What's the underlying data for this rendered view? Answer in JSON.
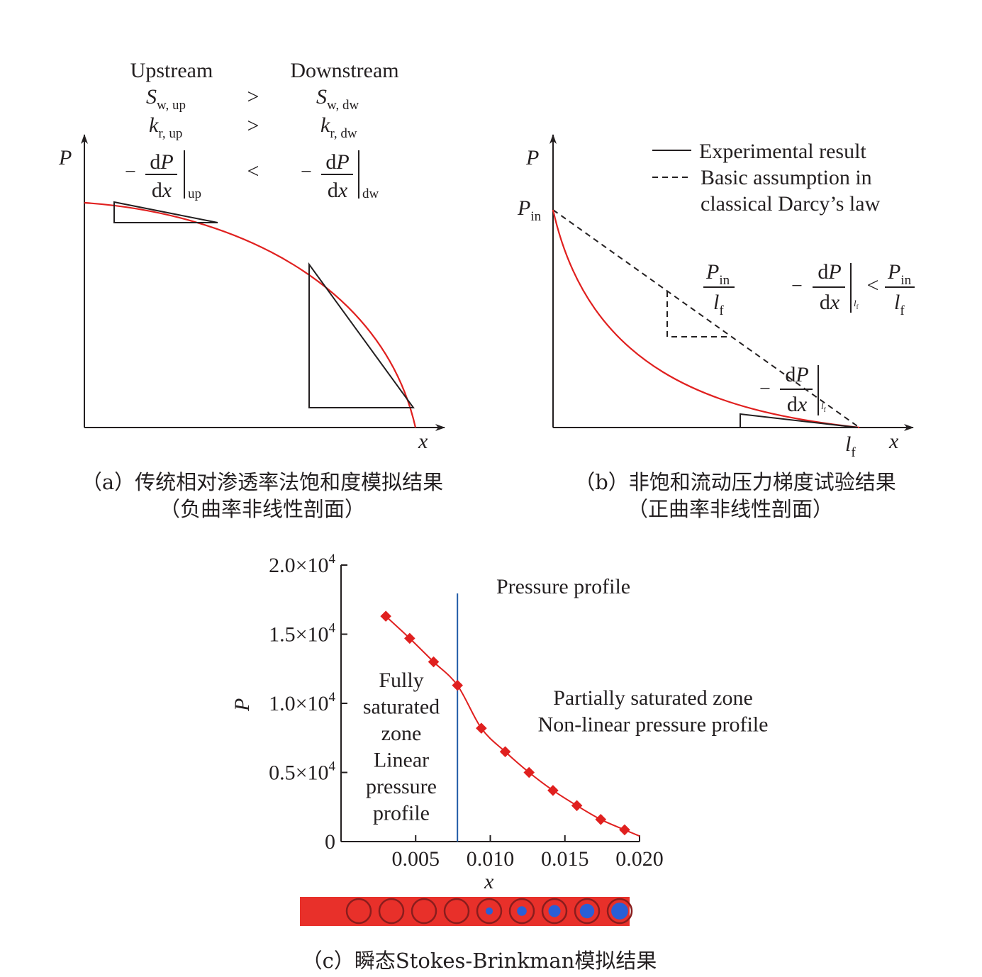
{
  "colors": {
    "curve": "#e0201f",
    "axis": "#231f20",
    "divider": "#1f5aa6",
    "marker": "#e0201f",
    "strip_background": "#e8302a",
    "strip_ring": "#8a1d1d",
    "strip_blue": "#2a5fd6"
  },
  "panel_a": {
    "axis_y": "P",
    "axis_x": "x",
    "col_up": "Upstream",
    "col_dw": "Downstream",
    "s_up_main": "S",
    "s_up_sub": "w, up",
    "s_dw_main": "S",
    "s_dw_sub": "w, dw",
    "k_up_main": "k",
    "k_up_sub": "r, up",
    "k_dw_main": "k",
    "k_dw_sub": "r, dw",
    "rel_s": ">",
    "rel_k": ">",
    "rel_grad": "<",
    "minus": "−",
    "num_d": "d",
    "num_P": "P",
    "den_d": "d",
    "den_x": "x",
    "sub_up": "up",
    "sub_dw": "dw",
    "caption_line1": "（a）传统相对渗透率法饱和度模拟结果",
    "caption_line2": "（负曲率非线性剖面）"
  },
  "panel_b": {
    "axis_y": "P",
    "axis_x": "x",
    "p_in_main": "P",
    "p_in_sub": "in",
    "lf_main": "l",
    "lf_sub": "f",
    "legend_solid": "Experimental result",
    "legend_dashed_line1": "Basic assumption in",
    "legend_dashed_line2": "classical Darcy’s law",
    "minus": "−",
    "num_d": "d",
    "num_P": "P",
    "den_d": "d",
    "den_x": "x",
    "rel": "<",
    "caption_line1": "（b）非饱和流动压力梯度试验结果",
    "caption_line2": "（正曲率非线性剖面）"
  },
  "panel_c": {
    "caption": "（c）瞬态Stokes-Brinkman模拟结果",
    "zone_left": [
      "Fully",
      "saturated",
      "zone",
      "Linear",
      "pressure",
      "profile"
    ],
    "zone_right": [
      "Partially saturated zone",
      "Non-linear pressure profile"
    ]
  },
  "chart_data": {
    "type": "line",
    "title": "Pressure profile",
    "xlabel": "x",
    "ylabel": "P",
    "xlim": [
      0,
      0.02
    ],
    "ylim": [
      0,
      20000
    ],
    "x_ticks": [
      {
        "v": 0.005,
        "label": "0.005"
      },
      {
        "v": 0.01,
        "label": "0.010"
      },
      {
        "v": 0.015,
        "label": "0.015"
      },
      {
        "v": 0.02,
        "label": "0.020"
      }
    ],
    "y_ticks": [
      {
        "v": 0,
        "base": "0",
        "exp": ""
      },
      {
        "v": 5000,
        "base": "0.5×10",
        "exp": "4"
      },
      {
        "v": 10000,
        "base": "1.0×10",
        "exp": "4"
      },
      {
        "v": 15000,
        "base": "1.5×10",
        "exp": "4"
      },
      {
        "v": 20000,
        "base": "2.0×10",
        "exp": "4"
      }
    ],
    "boundary_x": 0.0078,
    "series": [
      {
        "points": [
          [
            0.003,
            16300
          ],
          [
            0.0046,
            14700
          ],
          [
            0.0062,
            13000
          ],
          [
            0.0078,
            11300
          ],
          [
            0.0094,
            8200
          ],
          [
            0.011,
            6500
          ],
          [
            0.0126,
            5000
          ],
          [
            0.0142,
            3700
          ],
          [
            0.0158,
            2600
          ],
          [
            0.0174,
            1600
          ],
          [
            0.019,
            850
          ],
          [
            0.02,
            400
          ]
        ]
      }
    ],
    "strip_circles": [
      {
        "blue_fraction": 0
      },
      {
        "blue_fraction": 0
      },
      {
        "blue_fraction": 0
      },
      {
        "blue_fraction": 0
      },
      {
        "blue_fraction": 0.3
      },
      {
        "blue_fraction": 0.4
      },
      {
        "blue_fraction": 0.5
      },
      {
        "blue_fraction": 0.6
      },
      {
        "blue_fraction": 0.7
      }
    ]
  }
}
